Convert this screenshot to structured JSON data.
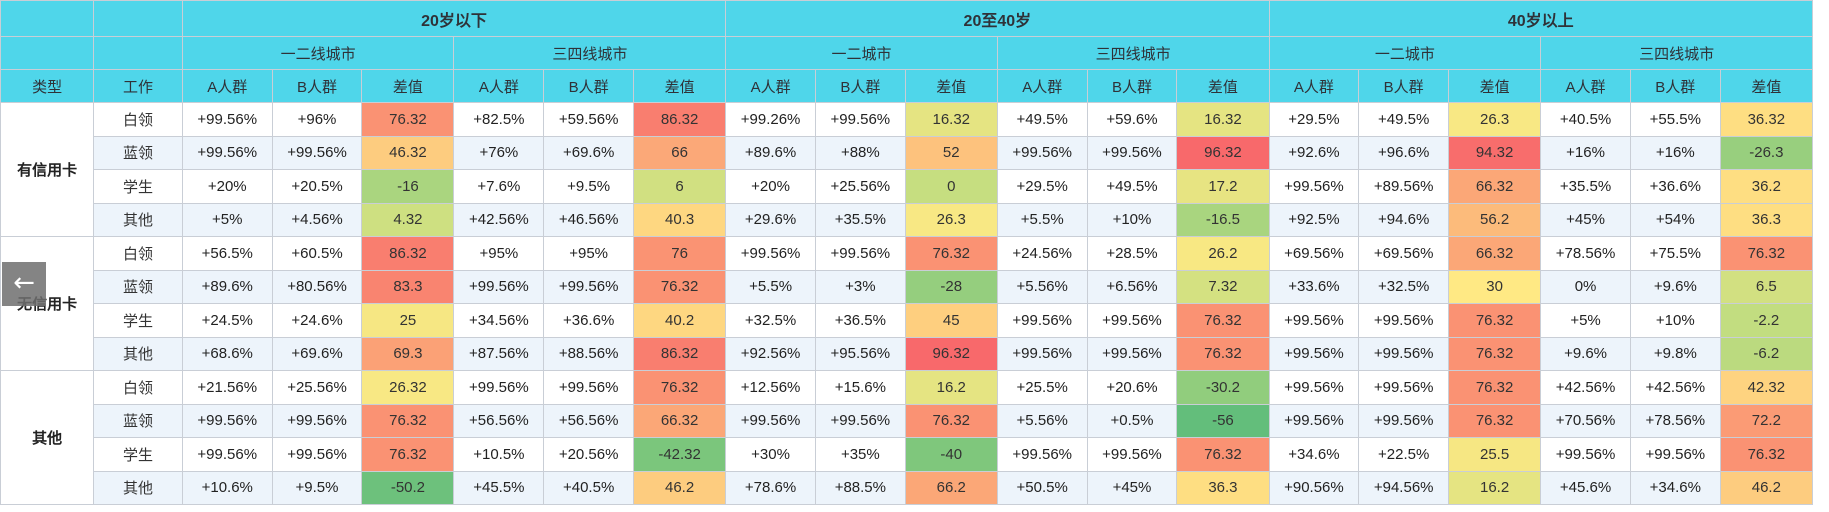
{
  "header": {
    "age_groups": [
      "20岁以下",
      "20至40岁",
      "40岁以上"
    ],
    "city_tiers": [
      "一二线城市",
      "三四线城市",
      "一二城市",
      "三四线城市",
      "一二城市",
      "三四线城市"
    ],
    "col_type": "类型",
    "col_job": "工作",
    "metric_labels": [
      "A人群",
      "B人群",
      "差值"
    ]
  },
  "back_button_icon": "arrow-left-icon",
  "groups": [
    {
      "type": "有信用卡",
      "rows": [
        {
          "job": "白领",
          "cells": [
            [
              "+99.56%",
              "+96%",
              "76.32"
            ],
            [
              "+82.5%",
              "+59.56%",
              "86.32"
            ],
            [
              "+99.26%",
              "+99.56%",
              "16.32"
            ],
            [
              "+49.5%",
              "+59.6%",
              "16.32"
            ],
            [
              "+29.5%",
              "+49.5%",
              "26.3"
            ],
            [
              "+40.5%",
              "+55.5%",
              "36.32"
            ]
          ]
        },
        {
          "job": "蓝领",
          "cells": [
            [
              "+99.56%",
              "+99.56%",
              "46.32"
            ],
            [
              "+76%",
              "+69.6%",
              "66"
            ],
            [
              "+89.6%",
              "+88%",
              "52"
            ],
            [
              "+99.56%",
              "+99.56%",
              "96.32"
            ],
            [
              "+92.6%",
              "+96.6%",
              "94.32"
            ],
            [
              "+16%",
              "+16%",
              "-26.3"
            ]
          ]
        },
        {
          "job": "学生",
          "cells": [
            [
              "+20%",
              "+20.5%",
              "-16"
            ],
            [
              "+7.6%",
              "+9.5%",
              "6"
            ],
            [
              "+20%",
              "+25.56%",
              "0"
            ],
            [
              "+29.5%",
              "+49.5%",
              "17.2"
            ],
            [
              "+99.56%",
              "+89.56%",
              "66.32"
            ],
            [
              "+35.5%",
              "+36.6%",
              "36.2"
            ]
          ]
        },
        {
          "job": "其他",
          "cells": [
            [
              "+5%",
              "+4.56%",
              "4.32"
            ],
            [
              "+42.56%",
              "+46.56%",
              "40.3"
            ],
            [
              "+29.6%",
              "+35.5%",
              "26.3"
            ],
            [
              "+5.5%",
              "+10%",
              "-16.5"
            ],
            [
              "+92.5%",
              "+94.6%",
              "56.2"
            ],
            [
              "+45%",
              "+54%",
              "36.3"
            ]
          ]
        }
      ]
    },
    {
      "type": "无信用卡",
      "rows": [
        {
          "job": "白领",
          "cells": [
            [
              "+56.5%",
              "+60.5%",
              "86.32"
            ],
            [
              "+95%",
              "+95%",
              "76"
            ],
            [
              "+99.56%",
              "+99.56%",
              "76.32"
            ],
            [
              "+24.56%",
              "+28.5%",
              "26.2"
            ],
            [
              "+69.56%",
              "+69.56%",
              "66.32"
            ],
            [
              "+78.56%",
              "+75.5%",
              "76.32"
            ]
          ]
        },
        {
          "job": "蓝领",
          "cells": [
            [
              "+89.6%",
              "+80.56%",
              "83.3"
            ],
            [
              "+99.56%",
              "+99.56%",
              "76.32"
            ],
            [
              "+5.5%",
              "+3%",
              "-28"
            ],
            [
              "+5.56%",
              "+6.56%",
              "7.32"
            ],
            [
              "+33.6%",
              "+32.5%",
              "30"
            ],
            [
              "0%",
              "+9.6%",
              "6.5"
            ]
          ]
        },
        {
          "job": "学生",
          "cells": [
            [
              "+24.5%",
              "+24.6%",
              "25"
            ],
            [
              "+34.56%",
              "+36.6%",
              "40.2"
            ],
            [
              "+32.5%",
              "+36.5%",
              "45"
            ],
            [
              "+99.56%",
              "+99.56%",
              "76.32"
            ],
            [
              "+99.56%",
              "+99.56%",
              "76.32"
            ],
            [
              "+5%",
              "+10%",
              "-2.2"
            ]
          ]
        },
        {
          "job": "其他",
          "cells": [
            [
              "+68.6%",
              "+69.6%",
              "69.3"
            ],
            [
              "+87.56%",
              "+88.56%",
              "86.32"
            ],
            [
              "+92.56%",
              "+95.56%",
              "96.32"
            ],
            [
              "+99.56%",
              "+99.56%",
              "76.32"
            ],
            [
              "+99.56%",
              "+99.56%",
              "76.32"
            ],
            [
              "+9.6%",
              "+9.8%",
              "-6.2"
            ]
          ]
        }
      ]
    },
    {
      "type": "其他",
      "rows": [
        {
          "job": "白领",
          "cells": [
            [
              "+21.56%",
              "+25.56%",
              "26.32"
            ],
            [
              "+99.56%",
              "+99.56%",
              "76.32"
            ],
            [
              "+12.56%",
              "+15.6%",
              "16.2"
            ],
            [
              "+25.5%",
              "+20.6%",
              "-30.2"
            ],
            [
              "+99.56%",
              "+99.56%",
              "76.32"
            ],
            [
              "+42.56%",
              "+42.56%",
              "42.32"
            ]
          ]
        },
        {
          "job": "蓝领",
          "cells": [
            [
              "+99.56%",
              "+99.56%",
              "76.32"
            ],
            [
              "+56.56%",
              "+56.56%",
              "66.32"
            ],
            [
              "+99.56%",
              "+99.56%",
              "76.32"
            ],
            [
              "+5.56%",
              "+0.5%",
              "-56"
            ],
            [
              "+99.56%",
              "+99.56%",
              "76.32"
            ],
            [
              "+70.56%",
              "+78.56%",
              "72.2"
            ]
          ]
        },
        {
          "job": "学生",
          "cells": [
            [
              "+99.56%",
              "+99.56%",
              "76.32"
            ],
            [
              "+10.5%",
              "+20.56%",
              "-42.32"
            ],
            [
              "+30%",
              "+35%",
              "-40"
            ],
            [
              "+99.56%",
              "+99.56%",
              "76.32"
            ],
            [
              "+34.6%",
              "+22.5%",
              "25.5"
            ],
            [
              "+99.56%",
              "+99.56%",
              "76.32"
            ]
          ]
        },
        {
          "job": "其他",
          "cells": [
            [
              "+10.6%",
              "+9.5%",
              "-50.2"
            ],
            [
              "+45.5%",
              "+40.5%",
              "46.2"
            ],
            [
              "+78.6%",
              "+88.5%",
              "66.2"
            ],
            [
              "+50.5%",
              "+45%",
              "36.3"
            ],
            [
              "+90.56%",
              "+94.56%",
              "16.2"
            ],
            [
              "+45.6%",
              "+34.6%",
              "46.2"
            ]
          ]
        }
      ]
    }
  ]
}
